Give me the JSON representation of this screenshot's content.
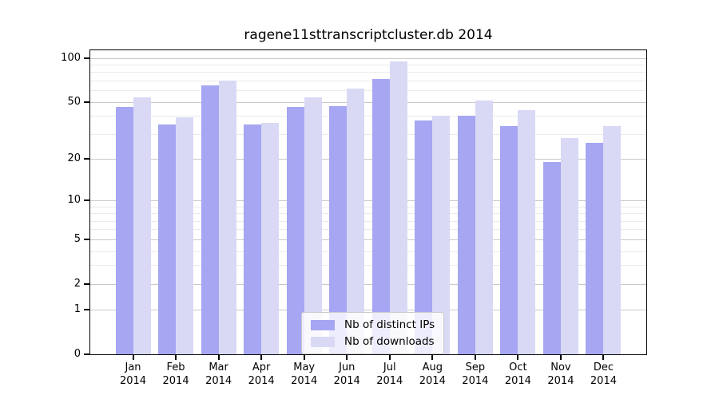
{
  "chart_data": {
    "type": "bar",
    "title": "ragene11sttranscriptcluster.db 2014",
    "categories": [
      "Jan",
      "Feb",
      "Mar",
      "Apr",
      "May",
      "Jun",
      "Jul",
      "Aug",
      "Sep",
      "Oct",
      "Nov",
      "Dec"
    ],
    "year": "2014",
    "series": [
      {
        "name": "Nb of distinct IPs",
        "color": "#a6a6f2",
        "values": [
          46,
          35,
          65,
          35,
          46,
          47,
          72,
          37,
          40,
          34,
          19,
          26
        ]
      },
      {
        "name": "Nb of downloads",
        "color": "#d9d9f6",
        "values": [
          54,
          39,
          70,
          36,
          54,
          62,
          95,
          40,
          51,
          44,
          28,
          34
        ]
      }
    ],
    "scale": "log10(value+1)",
    "ylim": [
      0,
      113
    ],
    "y_ticks": [
      100,
      50,
      20,
      10,
      5,
      2,
      1,
      0
    ],
    "y_minor_gridlines": [
      90,
      80,
      70,
      60,
      40,
      30,
      9,
      8,
      7,
      6,
      4,
      3
    ],
    "grid": "both",
    "legend_position": "lower-center-inside"
  },
  "colors": {
    "bar_ips": "#a6a6f2",
    "bar_downloads": "#d9d9f6",
    "grid_major": "#c9c9c9",
    "grid_minor": "#ebebeb",
    "axis": "#000000",
    "legend_border": "#cccccc",
    "legend_background": "rgba(255,255,255,0.8)"
  }
}
